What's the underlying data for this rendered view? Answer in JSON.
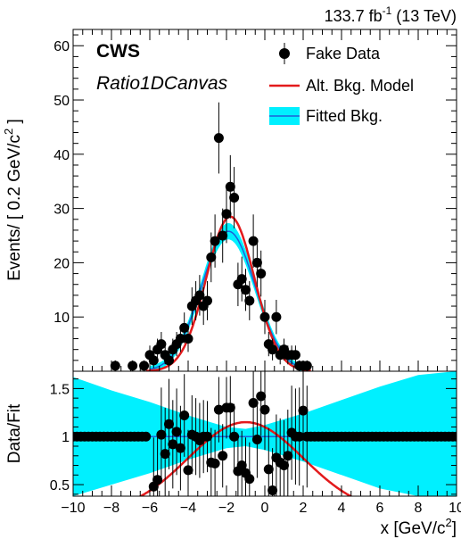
{
  "chart_data": [
    {
      "type": "scatter",
      "panel": "main",
      "lumi_label": "133.7 fb",
      "lumi_sup": "-1",
      "lumi_suffix": " (13 TeV)",
      "brand": "CWS",
      "canvas_name": "Ratio1DCanvas",
      "ylabel": "Events/ [ 0.2 GeV/c",
      "ylabel_sup": "2",
      "ylabel_end": " ]",
      "xlim": [
        -10,
        10
      ],
      "ylim": [
        0,
        63
      ],
      "y_ticks": [
        10,
        20,
        30,
        40,
        50,
        60
      ],
      "legend": [
        "Fake Data",
        "Alt. Bkg. Model",
        "Fitted Bkg."
      ],
      "legend_position": "top-right",
      "colors": {
        "data": "#000000",
        "alt_model": "#e31a1c",
        "fit_line": "#1f5fd9",
        "fit_band": "#00f0ff"
      },
      "data_points": [
        {
          "x": -7.8,
          "y": 1
        },
        {
          "x": -6.9,
          "y": 1
        },
        {
          "x": -6.3,
          "y": 1
        },
        {
          "x": -6.0,
          "y": 3
        },
        {
          "x": -5.8,
          "y": 2
        },
        {
          "x": -5.6,
          "y": 4
        },
        {
          "x": -5.4,
          "y": 5
        },
        {
          "x": -5.2,
          "y": 3
        },
        {
          "x": -5.0,
          "y": 2
        },
        {
          "x": -4.8,
          "y": 4
        },
        {
          "x": -4.6,
          "y": 5
        },
        {
          "x": -4.4,
          "y": 6
        },
        {
          "x": -4.2,
          "y": 8
        },
        {
          "x": -4.0,
          "y": 6
        },
        {
          "x": -3.8,
          "y": 12
        },
        {
          "x": -3.6,
          "y": 13
        },
        {
          "x": -3.4,
          "y": 14
        },
        {
          "x": -3.2,
          "y": 12
        },
        {
          "x": -3.0,
          "y": 13
        },
        {
          "x": -2.8,
          "y": 21
        },
        {
          "x": -2.6,
          "y": 24
        },
        {
          "x": -2.4,
          "y": 43
        },
        {
          "x": -2.2,
          "y": 25
        },
        {
          "x": -2.0,
          "y": 29
        },
        {
          "x": -1.8,
          "y": 34
        },
        {
          "x": -1.6,
          "y": 32
        },
        {
          "x": -1.4,
          "y": 16
        },
        {
          "x": -1.2,
          "y": 17
        },
        {
          "x": -1.0,
          "y": 15
        },
        {
          "x": -0.8,
          "y": 13
        },
        {
          "x": -0.6,
          "y": 24
        },
        {
          "x": -0.4,
          "y": 20
        },
        {
          "x": -0.2,
          "y": 18
        },
        {
          "x": 0.0,
          "y": 10
        },
        {
          "x": 0.2,
          "y": 5
        },
        {
          "x": 0.4,
          "y": 4
        },
        {
          "x": 0.6,
          "y": 10
        },
        {
          "x": 0.8,
          "y": 3
        },
        {
          "x": 1.0,
          "y": 4
        },
        {
          "x": 1.2,
          "y": 3
        },
        {
          "x": 1.4,
          "y": 3
        },
        {
          "x": 1.6,
          "y": 3
        },
        {
          "x": 1.8,
          "y": 1
        },
        {
          "x": 2.0,
          "y": 1
        },
        {
          "x": 2.2,
          "y": 1
        }
      ],
      "alt_model": {
        "amplitude": 28.5,
        "mean": -1.8,
        "sigma": 1.25
      },
      "fitted_bkg": {
        "amplitude": 25.8,
        "mean": -1.9,
        "sigma": 1.4
      }
    },
    {
      "type": "scatter",
      "panel": "ratio",
      "ylabel": "Data/Fit",
      "xlabel": "x [GeV/c",
      "xlabel_sup": "2",
      "xlabel_end": "]",
      "xlim": [
        -10,
        10
      ],
      "ylim": [
        0.38,
        1.68
      ],
      "x_ticks": [
        -10,
        -8,
        -6,
        -4,
        -2,
        0,
        2,
        4,
        6,
        8,
        10
      ],
      "y_ticks": [
        0.5,
        1,
        1.5
      ],
      "ratio_points": [
        {
          "x": -10.0,
          "y": 1.0
        },
        {
          "x": -9.8,
          "y": 1.0
        },
        {
          "x": -9.6,
          "y": 1.0
        },
        {
          "x": -9.4,
          "y": 1.0
        },
        {
          "x": -9.2,
          "y": 1.0
        },
        {
          "x": -9.0,
          "y": 1.0
        },
        {
          "x": -8.8,
          "y": 1.0
        },
        {
          "x": -8.6,
          "y": 1.0
        },
        {
          "x": -8.4,
          "y": 1.0
        },
        {
          "x": -8.2,
          "y": 1.0
        },
        {
          "x": -8.0,
          "y": 1.0
        },
        {
          "x": -7.8,
          "y": 1.0
        },
        {
          "x": -7.6,
          "y": 1.0
        },
        {
          "x": -7.4,
          "y": 1.0
        },
        {
          "x": -7.2,
          "y": 1.0
        },
        {
          "x": -7.0,
          "y": 1.0
        },
        {
          "x": -6.8,
          "y": 1.0
        },
        {
          "x": -6.6,
          "y": 1.0
        },
        {
          "x": -6.4,
          "y": 1.0
        },
        {
          "x": -6.2,
          "y": 1.0
        },
        {
          "x": -5.8,
          "y": 0.48
        },
        {
          "x": -5.6,
          "y": 0.55
        },
        {
          "x": -5.4,
          "y": 1.02
        },
        {
          "x": -5.2,
          "y": 0.82
        },
        {
          "x": -5.0,
          "y": 1.13
        },
        {
          "x": -4.8,
          "y": 0.92
        },
        {
          "x": -4.6,
          "y": 1.05
        },
        {
          "x": -4.4,
          "y": 0.88
        },
        {
          "x": -4.2,
          "y": 1.22
        },
        {
          "x": -4.0,
          "y": 0.65
        },
        {
          "x": -3.8,
          "y": 1.02
        },
        {
          "x": -3.6,
          "y": 1.0
        },
        {
          "x": -3.4,
          "y": 0.96
        },
        {
          "x": -3.2,
          "y": 1.0
        },
        {
          "x": -3.0,
          "y": 1.0
        },
        {
          "x": -2.8,
          "y": 0.73
        },
        {
          "x": -2.6,
          "y": 0.72
        },
        {
          "x": -2.4,
          "y": 1.28
        },
        {
          "x": -2.2,
          "y": 0.8
        },
        {
          "x": -2.0,
          "y": 1.3
        },
        {
          "x": -1.8,
          "y": 1.3
        },
        {
          "x": -1.6,
          "y": 1.0
        },
        {
          "x": -1.4,
          "y": 0.64
        },
        {
          "x": -1.2,
          "y": 0.7
        },
        {
          "x": -1.0,
          "y": 0.62
        },
        {
          "x": -0.8,
          "y": 0.56
        },
        {
          "x": -0.6,
          "y": 1.35
        },
        {
          "x": -0.4,
          "y": 0.97
        },
        {
          "x": -0.2,
          "y": 1.42
        },
        {
          "x": 0.0,
          "y": 1.28
        },
        {
          "x": 0.2,
          "y": 0.66
        },
        {
          "x": 0.4,
          "y": 0.44
        },
        {
          "x": 0.6,
          "y": 0.78
        },
        {
          "x": 0.8,
          "y": 0.73
        },
        {
          "x": 1.0,
          "y": 0.7
        },
        {
          "x": 1.2,
          "y": 0.8
        },
        {
          "x": 1.4,
          "y": 1.04
        },
        {
          "x": 1.6,
          "y": 1.0
        },
        {
          "x": 1.8,
          "y": 1.0
        },
        {
          "x": 2.0,
          "y": 1.27
        },
        {
          "x": 2.2,
          "y": 1.0
        },
        {
          "x": 2.4,
          "y": 1.0
        },
        {
          "x": 2.6,
          "y": 1.0
        },
        {
          "x": 2.8,
          "y": 1.0
        },
        {
          "x": 3.0,
          "y": 1.0
        },
        {
          "x": 3.2,
          "y": 1.0
        },
        {
          "x": 3.4,
          "y": 1.0
        },
        {
          "x": 3.6,
          "y": 1.0
        },
        {
          "x": 3.8,
          "y": 1.0
        },
        {
          "x": 4.0,
          "y": 1.0
        },
        {
          "x": 4.2,
          "y": 1.0
        },
        {
          "x": 4.4,
          "y": 1.0
        },
        {
          "x": 4.6,
          "y": 1.0
        },
        {
          "x": 4.8,
          "y": 1.0
        },
        {
          "x": 5.0,
          "y": 1.0
        },
        {
          "x": 5.2,
          "y": 1.0
        },
        {
          "x": 5.4,
          "y": 1.0
        },
        {
          "x": 5.6,
          "y": 1.0
        },
        {
          "x": 5.8,
          "y": 1.0
        },
        {
          "x": 6.0,
          "y": 1.0
        },
        {
          "x": 6.2,
          "y": 1.0
        },
        {
          "x": 6.4,
          "y": 1.0
        },
        {
          "x": 6.6,
          "y": 1.0
        },
        {
          "x": 6.8,
          "y": 1.0
        },
        {
          "x": 7.0,
          "y": 1.0
        },
        {
          "x": 7.2,
          "y": 1.0
        },
        {
          "x": 7.4,
          "y": 1.0
        },
        {
          "x": 7.6,
          "y": 1.0
        },
        {
          "x": 7.8,
          "y": 1.0
        },
        {
          "x": 8.0,
          "y": 1.0
        },
        {
          "x": 8.2,
          "y": 1.0
        },
        {
          "x": 8.4,
          "y": 1.0
        },
        {
          "x": 8.6,
          "y": 1.0
        },
        {
          "x": 8.8,
          "y": 1.0
        },
        {
          "x": 9.0,
          "y": 1.0
        },
        {
          "x": 9.2,
          "y": 1.0
        },
        {
          "x": 9.4,
          "y": 1.0
        },
        {
          "x": 9.6,
          "y": 1.0
        },
        {
          "x": 9.8,
          "y": 1.0
        },
        {
          "x": 10.0,
          "y": 1.0
        }
      ],
      "ratio_model": {
        "peak": 1.15,
        "mean": -1.0,
        "sigma": 3.0
      },
      "band": [
        {
          "x": -10,
          "lo": 0.38,
          "hi": 1.62
        },
        {
          "x": -8,
          "lo": 0.5,
          "hi": 1.48
        },
        {
          "x": -6,
          "lo": 0.62,
          "hi": 1.36
        },
        {
          "x": -4,
          "lo": 0.76,
          "hi": 1.22
        },
        {
          "x": -2,
          "lo": 0.88,
          "hi": 1.1
        },
        {
          "x": -1,
          "lo": 0.9,
          "hi": 1.08
        },
        {
          "x": 0,
          "lo": 0.86,
          "hi": 1.12
        },
        {
          "x": 2,
          "lo": 0.74,
          "hi": 1.24
        },
        {
          "x": 4,
          "lo": 0.6,
          "hi": 1.38
        },
        {
          "x": 6,
          "lo": 0.46,
          "hi": 1.52
        },
        {
          "x": 8,
          "lo": 0.38,
          "hi": 1.64
        },
        {
          "x": 10,
          "lo": 0.38,
          "hi": 1.68
        }
      ]
    }
  ]
}
